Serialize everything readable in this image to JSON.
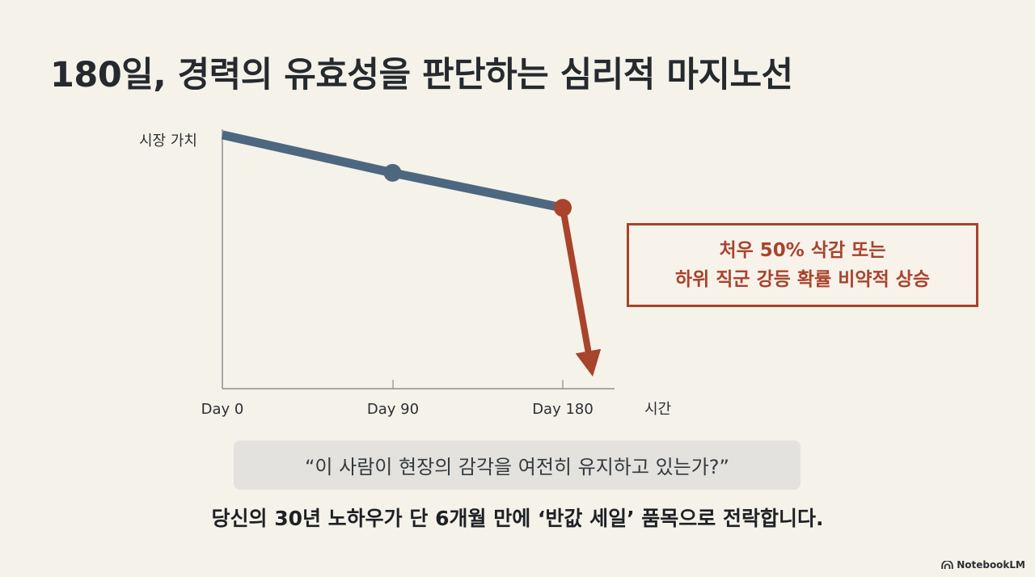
{
  "title": "180일, 경력의 유효성을 판단하는 심리적 마지노선",
  "chart_data": {
    "type": "line",
    "ylabel": "시장 가치",
    "xlabel": "시간",
    "x_ticks": [
      "Day 0",
      "Day 90",
      "Day 180"
    ],
    "series": [
      {
        "x": [
          0,
          90,
          180
        ],
        "y": [
          0.87,
          0.74,
          0.62
        ],
        "color": "#4e6780"
      }
    ],
    "drop": {
      "x": [
        180,
        195
      ],
      "y": [
        0.62,
        0.0
      ],
      "color": "#a8432c"
    },
    "xlim": [
      0,
      260
    ],
    "ylim": [
      0,
      1
    ],
    "grid": false
  },
  "callout": {
    "lines": [
      "처우 50% 삭감 또는",
      "하위 직군 강등 확률 비약적 상승"
    ]
  },
  "quote": "“이 사람이 현장의 감각을 여전히 유지하고 있는가?”",
  "footer": "당신의 30년 노하우가 단 6개월 만에 ‘반값 세일’ 품목으로 전락합니다.",
  "watermark": "NotebookLM",
  "watermark_icon": "notebooklm-logo-icon"
}
